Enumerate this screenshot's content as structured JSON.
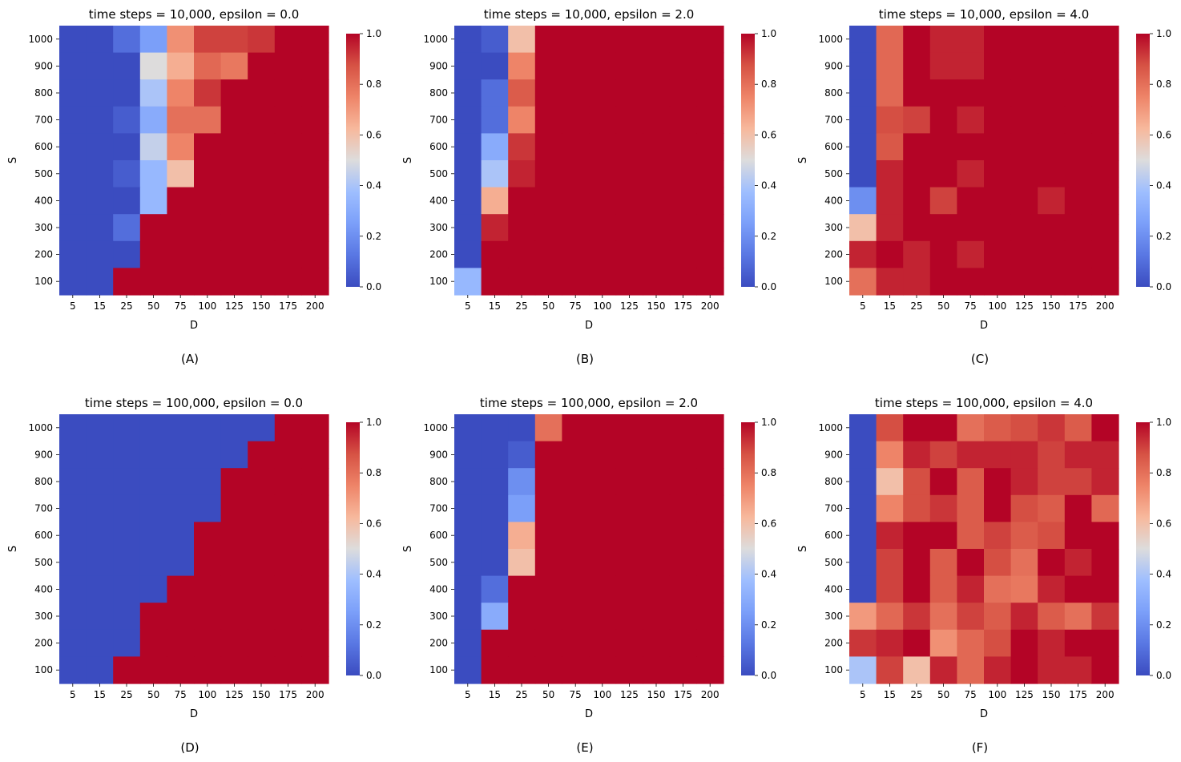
{
  "figure": {
    "background": "#ffffff"
  },
  "colormap": {
    "name": "coolwarm",
    "stops": [
      [
        0.0,
        "#3b4cc0"
      ],
      [
        0.125,
        "#5977e3"
      ],
      [
        0.25,
        "#7b9ff9"
      ],
      [
        0.375,
        "#9ebeff"
      ],
      [
        0.5,
        "#dddcdc"
      ],
      [
        0.625,
        "#f7b89c"
      ],
      [
        0.75,
        "#ee8468"
      ],
      [
        0.875,
        "#d65244"
      ],
      [
        1.0,
        "#b40426"
      ]
    ],
    "ticks": [
      "0.0",
      "0.2",
      "0.4",
      "0.6",
      "0.8",
      "1.0"
    ],
    "tick_values": [
      0,
      0.2,
      0.4,
      0.6,
      0.8,
      1.0
    ]
  },
  "chart_data": [
    {
      "type": "heatmap",
      "title": "time steps = 10,000, epsilon = 0.0",
      "panel_label": "(A)",
      "xlabel": "D",
      "ylabel": "S",
      "x_categories": [
        "5",
        "15",
        "25",
        "50",
        "75",
        "100",
        "125",
        "150",
        "175",
        "200"
      ],
      "y_categories": [
        "1000",
        "900",
        "800",
        "700",
        "600",
        "500",
        "400",
        "300",
        "200",
        "100"
      ],
      "zlim": [
        0,
        1
      ],
      "values": [
        [
          0,
          0,
          0.1,
          0.25,
          0.72,
          0.9,
          0.9,
          0.92,
          1,
          1
        ],
        [
          0,
          0,
          0,
          0.5,
          0.65,
          0.82,
          0.78,
          1,
          1,
          1
        ],
        [
          0,
          0,
          0,
          0.4,
          0.75,
          0.92,
          1,
          1,
          1,
          1
        ],
        [
          0,
          0,
          0.05,
          0.3,
          0.8,
          0.8,
          1,
          1,
          1,
          1
        ],
        [
          0,
          0,
          0,
          0.45,
          0.75,
          1,
          1,
          1,
          1,
          1
        ],
        [
          0,
          0,
          0.05,
          0.35,
          0.6,
          1,
          1,
          1,
          1,
          1
        ],
        [
          0,
          0,
          0,
          0.35,
          1,
          1,
          1,
          1,
          1,
          1
        ],
        [
          0,
          0,
          0.1,
          1,
          1,
          1,
          1,
          1,
          1,
          1
        ],
        [
          0,
          0,
          0,
          1,
          1,
          1,
          1,
          1,
          1,
          1
        ],
        [
          0,
          0,
          1,
          1,
          1,
          1,
          1,
          1,
          1,
          1
        ]
      ]
    },
    {
      "type": "heatmap",
      "title": "time steps = 10,000, epsilon = 2.0",
      "panel_label": "(B)",
      "xlabel": "D",
      "ylabel": "S",
      "x_categories": [
        "5",
        "15",
        "25",
        "50",
        "75",
        "100",
        "125",
        "150",
        "175",
        "200"
      ],
      "y_categories": [
        "1000",
        "900",
        "800",
        "700",
        "600",
        "500",
        "400",
        "300",
        "200",
        "100"
      ],
      "zlim": [
        0,
        1
      ],
      "values": [
        [
          0,
          0.05,
          0.6,
          1,
          1,
          1,
          1,
          1,
          1,
          1
        ],
        [
          0,
          0,
          0.75,
          1,
          1,
          1,
          1,
          1,
          1,
          1
        ],
        [
          0,
          0.1,
          0.85,
          1,
          1,
          1,
          1,
          1,
          1,
          1
        ],
        [
          0,
          0.1,
          0.75,
          1,
          1,
          1,
          1,
          1,
          1,
          1
        ],
        [
          0,
          0.3,
          0.92,
          1,
          1,
          1,
          1,
          1,
          1,
          1
        ],
        [
          0,
          0.4,
          0.95,
          1,
          1,
          1,
          1,
          1,
          1,
          1
        ],
        [
          0,
          0.65,
          1,
          1,
          1,
          1,
          1,
          1,
          1,
          1
        ],
        [
          0,
          0.95,
          1,
          1,
          1,
          1,
          1,
          1,
          1,
          1
        ],
        [
          0,
          1,
          1,
          1,
          1,
          1,
          1,
          1,
          1,
          1
        ],
        [
          0.35,
          1,
          1,
          1,
          1,
          1,
          1,
          1,
          1,
          1
        ]
      ]
    },
    {
      "type": "heatmap",
      "title": "time steps = 10,000, epsilon = 4.0",
      "panel_label": "(C)",
      "xlabel": "D",
      "ylabel": "S",
      "x_categories": [
        "5",
        "15",
        "25",
        "50",
        "75",
        "100",
        "125",
        "150",
        "175",
        "200"
      ],
      "y_categories": [
        "1000",
        "900",
        "800",
        "700",
        "600",
        "500",
        "400",
        "300",
        "200",
        "100"
      ],
      "zlim": [
        0,
        1
      ],
      "values": [
        [
          0,
          0.82,
          1,
          0.95,
          0.95,
          1,
          1,
          1,
          1,
          1
        ],
        [
          0,
          0.82,
          1,
          0.95,
          0.95,
          1,
          1,
          1,
          1,
          1
        ],
        [
          0,
          0.82,
          1,
          1,
          1,
          1,
          1,
          1,
          1,
          1
        ],
        [
          0,
          0.88,
          0.9,
          1,
          0.95,
          1,
          1,
          1,
          1,
          1
        ],
        [
          0,
          0.86,
          1,
          1,
          1,
          1,
          1,
          1,
          1,
          1
        ],
        [
          0,
          0.95,
          1,
          1,
          0.95,
          1,
          1,
          1,
          1,
          1
        ],
        [
          0.2,
          0.95,
          1,
          0.9,
          1,
          1,
          1,
          0.95,
          1,
          1
        ],
        [
          0.6,
          0.95,
          1,
          1,
          1,
          1,
          1,
          1,
          1,
          1
        ],
        [
          0.95,
          1,
          0.95,
          1,
          0.95,
          1,
          1,
          1,
          1,
          1
        ],
        [
          0.8,
          0.95,
          0.95,
          1,
          1,
          1,
          1,
          1,
          1,
          1
        ]
      ]
    },
    {
      "type": "heatmap",
      "title": "time steps = 100,000, epsilon = 0.0",
      "panel_label": "(D)",
      "xlabel": "D",
      "ylabel": "S",
      "x_categories": [
        "5",
        "15",
        "25",
        "50",
        "75",
        "100",
        "125",
        "150",
        "175",
        "200"
      ],
      "y_categories": [
        "1000",
        "900",
        "800",
        "700",
        "600",
        "500",
        "400",
        "300",
        "200",
        "100"
      ],
      "zlim": [
        0,
        1
      ],
      "values": [
        [
          0,
          0,
          0,
          0,
          0,
          0,
          0,
          0,
          1,
          1
        ],
        [
          0,
          0,
          0,
          0,
          0,
          0,
          0,
          1,
          1,
          1
        ],
        [
          0,
          0,
          0,
          0,
          0,
          0,
          1,
          1,
          1,
          1
        ],
        [
          0,
          0,
          0,
          0,
          0,
          0,
          1,
          1,
          1,
          1
        ],
        [
          0,
          0,
          0,
          0,
          0,
          1,
          1,
          1,
          1,
          1
        ],
        [
          0,
          0,
          0,
          0,
          0,
          1,
          1,
          1,
          1,
          1
        ],
        [
          0,
          0,
          0,
          0,
          1,
          1,
          1,
          1,
          1,
          1
        ],
        [
          0,
          0,
          0,
          1,
          1,
          1,
          1,
          1,
          1,
          1
        ],
        [
          0,
          0,
          0,
          1,
          1,
          1,
          1,
          1,
          1,
          1
        ],
        [
          0,
          0,
          1,
          1,
          1,
          1,
          1,
          1,
          1,
          1
        ]
      ]
    },
    {
      "type": "heatmap",
      "title": "time steps = 100,000, epsilon = 2.0",
      "panel_label": "(E)",
      "xlabel": "D",
      "ylabel": "S",
      "x_categories": [
        "5",
        "15",
        "25",
        "50",
        "75",
        "100",
        "125",
        "150",
        "175",
        "200"
      ],
      "y_categories": [
        "1000",
        "900",
        "800",
        "700",
        "600",
        "500",
        "400",
        "300",
        "200",
        "100"
      ],
      "zlim": [
        0,
        1
      ],
      "values": [
        [
          0,
          0,
          0,
          0.8,
          1,
          1,
          1,
          1,
          1,
          1
        ],
        [
          0,
          0,
          0.05,
          1,
          1,
          1,
          1,
          1,
          1,
          1
        ],
        [
          0,
          0,
          0.2,
          1,
          1,
          1,
          1,
          1,
          1,
          1
        ],
        [
          0,
          0,
          0.25,
          1,
          1,
          1,
          1,
          1,
          1,
          1
        ],
        [
          0,
          0,
          0.65,
          1,
          1,
          1,
          1,
          1,
          1,
          1
        ],
        [
          0,
          0,
          0.6,
          1,
          1,
          1,
          1,
          1,
          1,
          1
        ],
        [
          0,
          0.1,
          1,
          1,
          1,
          1,
          1,
          1,
          1,
          1
        ],
        [
          0,
          0.3,
          1,
          1,
          1,
          1,
          1,
          1,
          1,
          1
        ],
        [
          0,
          1,
          1,
          1,
          1,
          1,
          1,
          1,
          1,
          1
        ],
        [
          0,
          1,
          1,
          1,
          1,
          1,
          1,
          1,
          1,
          1
        ]
      ]
    },
    {
      "type": "heatmap",
      "title": "time steps = 100,000, epsilon = 4.0",
      "panel_label": "(F)",
      "xlabel": "D",
      "ylabel": "S",
      "x_categories": [
        "5",
        "15",
        "25",
        "50",
        "75",
        "100",
        "125",
        "150",
        "175",
        "200"
      ],
      "y_categories": [
        "1000",
        "900",
        "800",
        "700",
        "600",
        "500",
        "400",
        "300",
        "200",
        "100"
      ],
      "zlim": [
        0,
        1
      ],
      "values": [
        [
          0,
          0.88,
          1,
          1,
          0.8,
          0.85,
          0.88,
          0.92,
          0.85,
          1
        ],
        [
          0,
          0.75,
          0.95,
          0.9,
          0.95,
          0.95,
          0.95,
          0.9,
          0.95,
          0.95
        ],
        [
          0,
          0.6,
          0.88,
          1,
          0.85,
          1,
          0.95,
          0.9,
          0.9,
          0.95
        ],
        [
          0,
          0.75,
          0.88,
          0.92,
          0.85,
          1,
          0.88,
          0.85,
          1,
          0.82
        ],
        [
          0,
          0.95,
          1,
          1,
          0.85,
          0.9,
          0.85,
          0.88,
          1,
          1
        ],
        [
          0,
          0.9,
          1,
          0.85,
          1,
          0.88,
          0.8,
          1,
          0.95,
          1
        ],
        [
          0,
          0.9,
          1,
          0.85,
          0.95,
          0.8,
          0.78,
          0.95,
          1,
          1
        ],
        [
          0.7,
          0.82,
          0.92,
          0.8,
          0.9,
          0.85,
          0.95,
          0.85,
          0.8,
          0.92
        ],
        [
          0.92,
          0.95,
          1,
          0.72,
          0.82,
          0.88,
          1,
          0.95,
          1,
          1
        ],
        [
          0.4,
          0.9,
          0.6,
          0.95,
          0.82,
          0.95,
          1,
          0.95,
          0.95,
          1
        ]
      ]
    }
  ]
}
